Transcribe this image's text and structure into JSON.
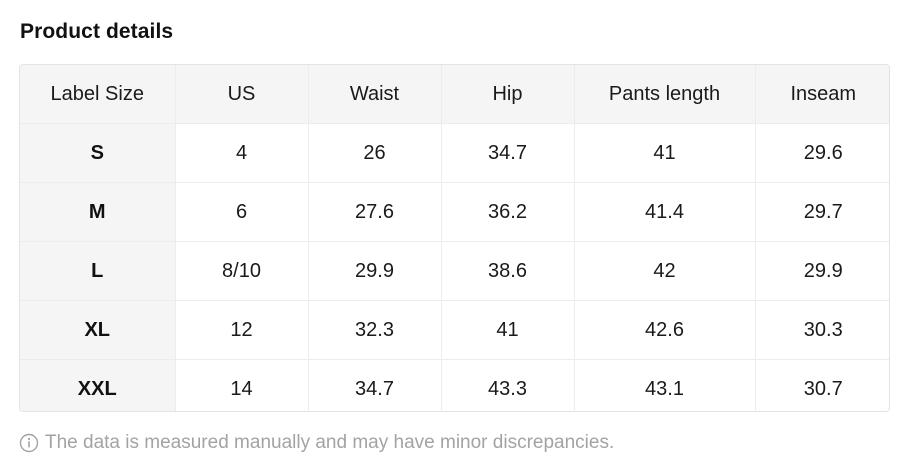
{
  "section_title": "Product details",
  "table": {
    "headers": [
      "Label Size",
      "US",
      "Waist",
      "Hip",
      "Pants length",
      "Inseam"
    ],
    "rows": [
      [
        "S",
        "4",
        "26",
        "34.7",
        "41",
        "29.6"
      ],
      [
        "M",
        "6",
        "27.6",
        "36.2",
        "41.4",
        "29.7"
      ],
      [
        "L",
        "8/10",
        "29.9",
        "38.6",
        "42",
        "29.9"
      ],
      [
        "XL",
        "12",
        "32.3",
        "41",
        "42.6",
        "30.3"
      ],
      [
        "XXL",
        "14",
        "34.7",
        "43.3",
        "43.1",
        "30.7"
      ]
    ]
  },
  "footnote": {
    "icon": "info-icon",
    "text": "The data is measured manually and may have minor discrepancies."
  }
}
